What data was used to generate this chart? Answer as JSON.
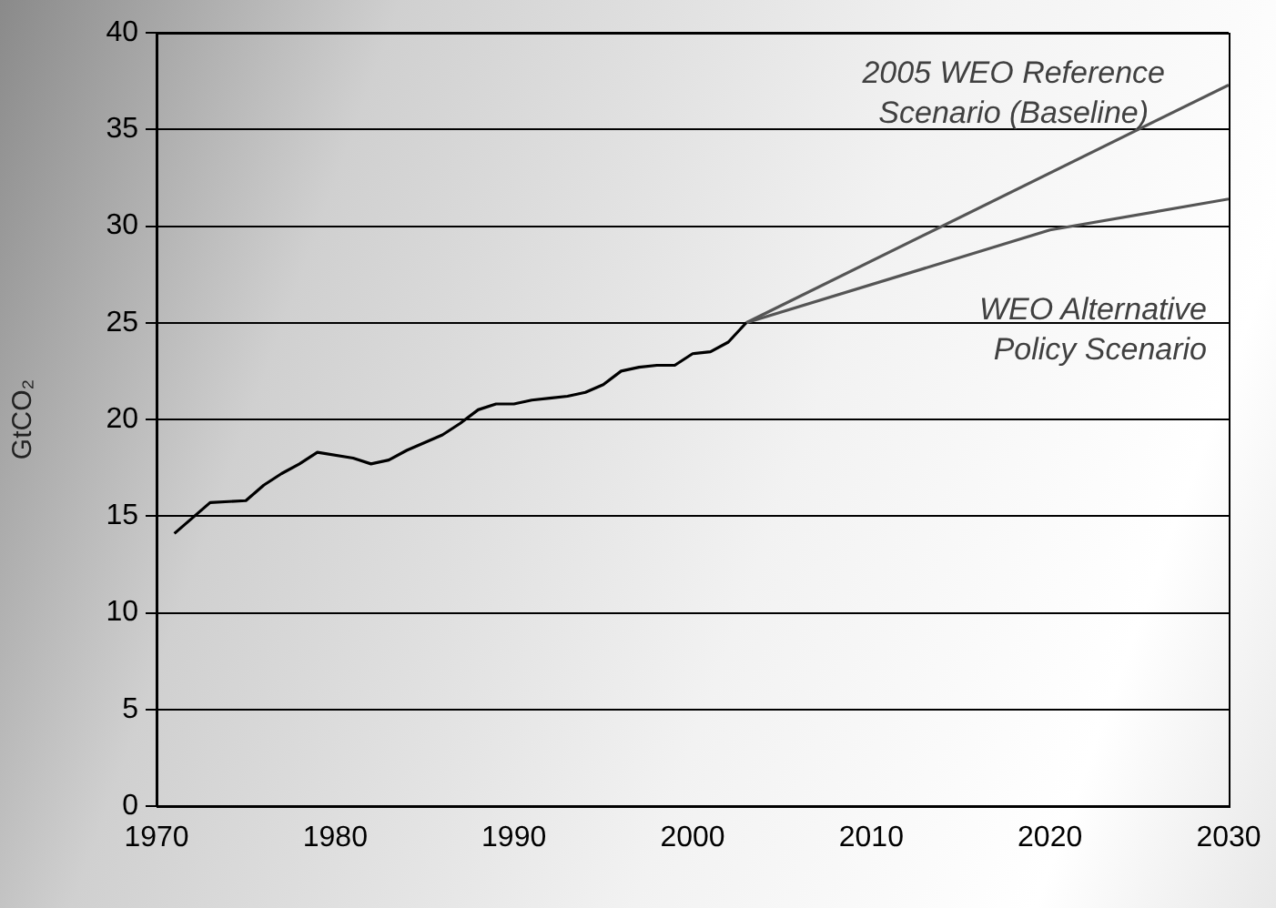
{
  "chart_data": {
    "type": "line",
    "ylabel": "GtCO₂",
    "xlim": [
      1970,
      2030
    ],
    "xticks": [
      1970,
      1980,
      1990,
      2000,
      2010,
      2020,
      2030
    ],
    "ylim": [
      0,
      40
    ],
    "yticks": [
      0,
      5,
      10,
      15,
      20,
      25,
      30,
      35,
      40
    ],
    "grid": "y",
    "legend": false,
    "marker": "none",
    "line_style": "solid",
    "series": [
      {
        "color": "#000000",
        "x": [
          1971,
          1972,
          1973,
          1975,
          1976,
          1977,
          1978,
          1979,
          1981,
          1982,
          1983,
          1984,
          1985,
          1986,
          1987,
          1988,
          1989,
          1990,
          1991,
          1992,
          1993,
          1994,
          1995,
          1996,
          1997,
          1998,
          1999,
          2000,
          2001,
          2002,
          2003
        ],
        "values": [
          14.1,
          14.9,
          15.7,
          15.8,
          16.6,
          17.2,
          17.7,
          18.3,
          18.0,
          17.7,
          17.9,
          18.4,
          18.8,
          19.2,
          19.8,
          20.5,
          20.8,
          20.8,
          21.0,
          21.1,
          21.2,
          21.4,
          21.8,
          22.5,
          22.7,
          22.8,
          22.8,
          23.4,
          23.5,
          24.0,
          25.0
        ]
      },
      {
        "color": "#555555",
        "x": [
          2003,
          2030
        ],
        "values": [
          25.0,
          37.3
        ]
      },
      {
        "color": "#555555",
        "x": [
          2003,
          2020,
          2030
        ],
        "values": [
          25.0,
          29.8,
          31.4
        ]
      }
    ],
    "annotations": [
      "2005 WEO Reference Scenario (Baseline)",
      "WEO Alternative Policy Scenario"
    ]
  }
}
